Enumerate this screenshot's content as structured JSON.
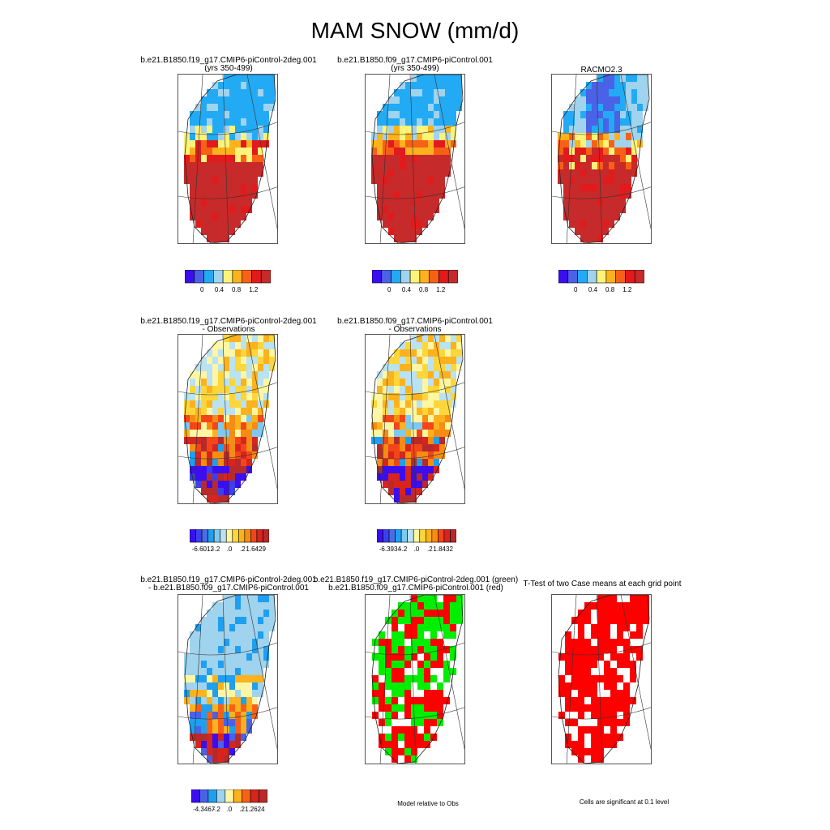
{
  "title": "MAM SNOW (mm/d)",
  "colors": {
    "abs": [
      "#3b0ef0",
      "#4a62e6",
      "#22aaf4",
      "#9fd3ee",
      "#fbf37a",
      "#fbb21d",
      "#f76115",
      "#e21a1c",
      "#c62a2a"
    ],
    "diff": [
      "#3b0ef0",
      "#3a40ea",
      "#4a6ce6",
      "#1f9ff0",
      "#7fc9f0",
      "#b9e2f2",
      "#fdf6a4",
      "#fcd63a",
      "#fbb21d",
      "#f78c13",
      "#f2461a",
      "#d8241f",
      "#b82a2a"
    ],
    "diff2": [
      "#3b0ef0",
      "#4a62e6",
      "#1f9ff0",
      "#9fd3ee",
      "#fdf6a4",
      "#fbb21d",
      "#f76115",
      "#d8241f",
      "#b82a2a"
    ],
    "green": "#00ee00",
    "red": "#ff0000"
  },
  "panels": [
    {
      "id": "p1",
      "title1": "b.e21.B1850.f19_g17.CMIP6-piControl-2deg.001",
      "title2": "(yrs 350-499)"
    },
    {
      "id": "p2",
      "title1": "b.e21.B1850.f09_g17.CMIP6-piControl.001",
      "title2": "(yrs 350-499)"
    },
    {
      "id": "p3",
      "title1": "RACMO2.3",
      "title2": ""
    },
    {
      "id": "p4",
      "title1": "b.e21.B1850.f19_g17.CMIP6-piControl-2deg.001",
      "title2": "- Observations"
    },
    {
      "id": "p5",
      "title1": "b.e21.B1850.f09_g17.CMIP6-piControl.001",
      "title2": "- Observations"
    },
    {
      "id": "p7",
      "title1": "b.e21.B1850.f19_g17.CMIP6-piControl-2deg.001",
      "title2": "- b.e21.B1850.f09_g17.CMIP6-piControl.001"
    },
    {
      "id": "p8",
      "title1": "b.e21.B1850.f19_g17.CMIP6-piControl-2deg.001 (green)",
      "title2": "b.e21.B1850.f09_g17.CMIP6-piControl.001 (red)"
    },
    {
      "id": "p9",
      "title1": "T-Test of two Case means at each grid point",
      "title2": ""
    }
  ],
  "colorbars": {
    "abs_labels": [
      "0",
      "0.4",
      "0.8",
      "1.2"
    ],
    "diff1_labels": [
      "-6.6012",
      "-.2",
      ".0",
      ".2",
      "1.6429"
    ],
    "diff2_labels": [
      "-6.3934",
      "-.2",
      ".0",
      ".2",
      "1.8432"
    ],
    "diff3_labels": [
      "-4.3467",
      "-.2",
      ".0",
      ".2",
      "1.2624"
    ]
  },
  "footers": {
    "model_relative": "Model relative to Obs",
    "significance": "Cells are significant at 0.1 level"
  },
  "chart_data": [
    {
      "type": "heatmap",
      "title": "b.e21.B1850.f19_g17.CMIP6-piControl-2deg.001 (yrs 350-499)",
      "colorbar_ticks": [
        0,
        0.4,
        0.8,
        1.2
      ]
    },
    {
      "type": "heatmap",
      "title": "b.e21.B1850.f09_g17.CMIP6-piControl.001 (yrs 350-499)",
      "colorbar_ticks": [
        0,
        0.4,
        0.8,
        1.2
      ]
    },
    {
      "type": "heatmap",
      "title": "RACMO2.3",
      "colorbar_ticks": [
        0,
        0.4,
        0.8,
        1.2
      ]
    },
    {
      "type": "heatmap",
      "title": "b.e21.B1850.f19_g17.CMIP6-piControl-2deg.001 - Observations",
      "colorbar_range": [
        -6.6012,
        1.6429
      ]
    },
    {
      "type": "heatmap",
      "title": "b.e21.B1850.f09_g17.CMIP6-piControl.001 - Observations",
      "colorbar_range": [
        -6.3934,
        1.8432
      ]
    },
    {
      "type": "heatmap",
      "title": "b.e21.B1850.f19_g17.CMIP6-piControl-2deg.001 - b.e21.B1850.f09_g17.CMIP6-piControl.001",
      "colorbar_range": [
        -4.3467,
        1.2624
      ]
    },
    {
      "type": "heatmap",
      "title": "b.e21.B1850.f19_g17.CMIP6-piControl-2deg.001 (green) b.e21.B1850.f09_g17.CMIP6-piControl.001 (red)",
      "legend": [
        "green",
        "red"
      ]
    },
    {
      "type": "heatmap",
      "title": "T-Test of two Case means at each grid point",
      "legend": [
        "red"
      ]
    }
  ]
}
